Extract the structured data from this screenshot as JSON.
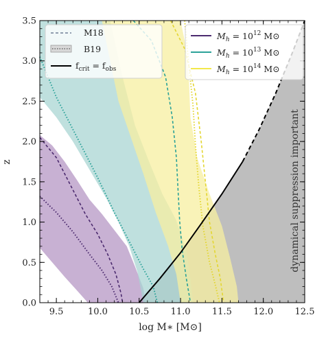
{
  "chart_data": {
    "type": "line",
    "xlabel": "log M∗ [M⊙]",
    "ylabel": "z",
    "xlim": [
      9.3,
      12.5
    ],
    "ylim": [
      0.0,
      3.5
    ],
    "xticks": [
      "9.5",
      "10.0",
      "10.5",
      "11.0",
      "11.5",
      "12.0",
      "12.5"
    ],
    "xtick_values": [
      9.5,
      10.0,
      10.5,
      11.0,
      11.5,
      12.0,
      12.5
    ],
    "yticks": [
      "0.0",
      "0.5",
      "1.0",
      "1.5",
      "2.0",
      "2.5",
      "3.0",
      "3.5"
    ],
    "ytick_values": [
      0.0,
      0.5,
      1.0,
      1.5,
      2.0,
      2.5,
      3.0,
      3.5
    ],
    "grid": false,
    "annotation": "dynamical suppression important",
    "legend_style": {
      "position": "top-left",
      "entries": [
        {
          "label": "M18",
          "style": "dashed"
        },
        {
          "label": "B19",
          "style": "band-dotted"
        },
        {
          "label": "f",
          "sub1": "crit",
          "mid": " = f",
          "sub2": "obs",
          "style": "solid"
        }
      ]
    },
    "legend_mass": {
      "position": "top-right",
      "entries": [
        {
          "prefix": "M",
          "sub": "h",
          "eq": " = 10",
          "exp": "12",
          "unit": " M⊙",
          "color": "#4b2a6e"
        },
        {
          "prefix": "M",
          "sub": "h",
          "eq": " = 10",
          "exp": "13",
          "unit": " M⊙",
          "color": "#2aa198"
        },
        {
          "prefix": "M",
          "sub": "h",
          "eq": " = 10",
          "exp": "14",
          "unit": " M⊙",
          "color": "#f2e84a"
        }
      ]
    },
    "series": [
      {
        "key": "purple",
        "color": "#4b2a6e",
        "band_color": "#b597c4",
        "band_upper": [
          [
            9.3,
            2.08
          ],
          [
            9.45,
            1.95
          ],
          [
            9.6,
            1.75
          ],
          [
            9.75,
            1.52
          ],
          [
            9.9,
            1.28
          ],
          [
            10.05,
            1.1
          ],
          [
            10.2,
            0.9
          ],
          [
            10.35,
            0.7
          ],
          [
            10.45,
            0.45
          ],
          [
            10.55,
            0.18
          ],
          [
            10.58,
            0.0
          ]
        ],
        "band_lower": [
          [
            9.3,
            0.68
          ],
          [
            9.45,
            0.5
          ],
          [
            9.6,
            0.32
          ],
          [
            9.75,
            0.15
          ],
          [
            9.88,
            0.0
          ]
        ],
        "dashed": [
          [
            9.3,
            2.05
          ],
          [
            9.5,
            1.8
          ],
          [
            9.7,
            1.4
          ],
          [
            9.85,
            1.1
          ],
          [
            10.0,
            0.85
          ],
          [
            10.12,
            0.6
          ],
          [
            10.22,
            0.35
          ],
          [
            10.28,
            0.12
          ],
          [
            10.3,
            0.0
          ]
        ],
        "dotted": [
          [
            9.3,
            1.32
          ],
          [
            9.5,
            1.12
          ],
          [
            9.7,
            0.88
          ],
          [
            9.9,
            0.6
          ],
          [
            10.05,
            0.4
          ],
          [
            10.17,
            0.2
          ],
          [
            10.25,
            0.0
          ]
        ]
      },
      {
        "key": "teal",
        "color": "#2aa198",
        "band_color": "#a9d5d3",
        "band_upper": [
          [
            9.3,
            3.5
          ],
          [
            10.15,
            3.5
          ],
          [
            10.3,
            2.8
          ],
          [
            10.45,
            2.2
          ],
          [
            10.62,
            1.75
          ],
          [
            10.78,
            1.35
          ],
          [
            10.95,
            1.02
          ],
          [
            11.07,
            0.65
          ],
          [
            11.12,
            0.3
          ],
          [
            11.15,
            0.0
          ]
        ],
        "band_lower": [
          [
            9.3,
            2.55
          ],
          [
            9.5,
            2.3
          ],
          [
            9.7,
            2.0
          ],
          [
            9.9,
            1.65
          ],
          [
            10.1,
            1.3
          ],
          [
            10.25,
            1.0
          ],
          [
            10.38,
            0.7
          ],
          [
            10.48,
            0.38
          ],
          [
            10.55,
            0.0
          ]
        ],
        "dashed": [
          [
            10.43,
            3.5
          ],
          [
            10.65,
            3.25
          ],
          [
            10.82,
            2.8
          ],
          [
            10.9,
            2.3
          ],
          [
            10.95,
            1.8
          ],
          [
            10.97,
            1.4
          ],
          [
            10.99,
            1.0
          ],
          [
            11.02,
            0.65
          ],
          [
            11.07,
            0.3
          ],
          [
            11.12,
            0.0
          ]
        ],
        "dotted": [
          [
            9.3,
            3.05
          ],
          [
            9.5,
            2.55
          ],
          [
            9.75,
            2.05
          ],
          [
            10.0,
            1.55
          ],
          [
            10.2,
            1.12
          ],
          [
            10.4,
            0.72
          ],
          [
            10.55,
            0.42
          ],
          [
            10.67,
            0.2
          ],
          [
            10.72,
            0.0
          ]
        ]
      },
      {
        "key": "yellow",
        "color": "#f2e84a",
        "band_color": "#f7efa0",
        "band_upper": [
          [
            10.78,
            3.5
          ],
          [
            11.0,
            3.5
          ],
          [
            11.05,
            3.25
          ],
          [
            11.1,
            2.8
          ],
          [
            11.12,
            2.3
          ],
          [
            11.2,
            1.8
          ],
          [
            11.35,
            1.35
          ],
          [
            11.5,
            0.95
          ],
          [
            11.6,
            0.55
          ],
          [
            11.68,
            0.2
          ],
          [
            11.7,
            0.0
          ]
        ],
        "band_lower": [
          [
            10.05,
            3.5
          ],
          [
            10.15,
            3.0
          ],
          [
            10.25,
            2.5
          ],
          [
            10.4,
            2.05
          ],
          [
            10.55,
            1.6
          ],
          [
            10.7,
            1.12
          ],
          [
            10.85,
            0.7
          ],
          [
            10.95,
            0.35
          ],
          [
            11.0,
            0.0
          ]
        ],
        "dashed": [
          [
            10.88,
            3.5
          ],
          [
            11.05,
            3.15
          ],
          [
            11.18,
            2.6
          ],
          [
            11.25,
            2.0
          ],
          [
            11.3,
            1.5
          ],
          [
            11.35,
            1.0
          ],
          [
            11.42,
            0.6
          ],
          [
            11.48,
            0.3
          ],
          [
            11.52,
            0.0
          ]
        ],
        "dotted": [
          [
            11.05,
            3.5
          ],
          [
            11.1,
            2.95
          ],
          [
            11.15,
            2.45
          ],
          [
            11.18,
            1.95
          ],
          [
            11.22,
            1.45
          ],
          [
            11.27,
            0.95
          ],
          [
            11.35,
            0.5
          ],
          [
            11.42,
            0.22
          ],
          [
            11.47,
            0.0
          ]
        ]
      }
    ],
    "fcrit_solid": [
      [
        10.5,
        0.0
      ],
      [
        10.75,
        0.3
      ],
      [
        11.0,
        0.62
      ],
      [
        11.25,
        0.98
      ],
      [
        11.5,
        1.35
      ],
      [
        11.75,
        1.75
      ]
    ],
    "fcrit_dashed": [
      [
        11.75,
        1.75
      ],
      [
        11.95,
        2.15
      ],
      [
        12.15,
        2.6
      ],
      [
        12.35,
        3.1
      ],
      [
        12.5,
        3.5
      ]
    ]
  }
}
